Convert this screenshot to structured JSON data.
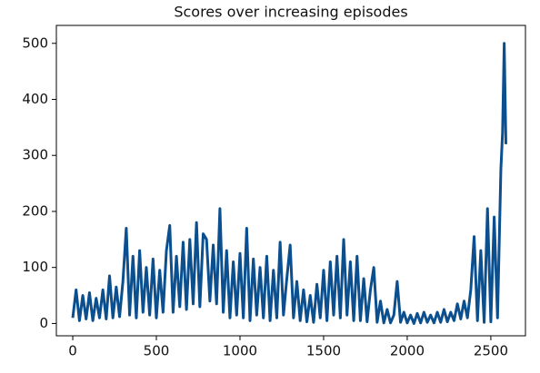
{
  "chart_data": {
    "type": "line",
    "title": "Scores over increasing episodes",
    "x": [
      0,
      20,
      40,
      60,
      80,
      100,
      120,
      140,
      160,
      180,
      200,
      220,
      240,
      260,
      280,
      300,
      320,
      340,
      360,
      380,
      400,
      420,
      440,
      460,
      480,
      500,
      520,
      540,
      560,
      580,
      600,
      620,
      640,
      660,
      680,
      700,
      720,
      740,
      760,
      780,
      800,
      820,
      840,
      860,
      880,
      900,
      920,
      940,
      960,
      980,
      1000,
      1020,
      1040,
      1060,
      1080,
      1100,
      1120,
      1140,
      1160,
      1180,
      1200,
      1220,
      1240,
      1260,
      1280,
      1300,
      1320,
      1340,
      1360,
      1380,
      1400,
      1420,
      1440,
      1460,
      1480,
      1500,
      1520,
      1540,
      1560,
      1580,
      1600,
      1620,
      1640,
      1660,
      1680,
      1700,
      1720,
      1740,
      1760,
      1780,
      1800,
      1820,
      1840,
      1860,
      1880,
      1900,
      1920,
      1940,
      1960,
      1980,
      2000,
      2020,
      2040,
      2060,
      2080,
      2100,
      2120,
      2140,
      2160,
      2180,
      2200,
      2220,
      2240,
      2260,
      2280,
      2300,
      2320,
      2340,
      2360,
      2380,
      2400,
      2420,
      2440,
      2460,
      2480,
      2500,
      2520,
      2540,
      2560,
      2570,
      2580,
      2590
    ],
    "series": [
      {
        "name": "Scores",
        "color": "#0b4f8f",
        "values": [
          10,
          60,
          5,
          50,
          8,
          55,
          5,
          45,
          10,
          60,
          8,
          85,
          10,
          65,
          12,
          75,
          170,
          15,
          120,
          10,
          130,
          20,
          100,
          15,
          115,
          10,
          95,
          20,
          130,
          175,
          20,
          120,
          30,
          145,
          25,
          150,
          35,
          180,
          30,
          160,
          150,
          40,
          140,
          35,
          205,
          20,
          130,
          10,
          110,
          15,
          125,
          10,
          170,
          5,
          115,
          15,
          100,
          10,
          120,
          5,
          95,
          10,
          145,
          15,
          80,
          140,
          10,
          75,
          5,
          60,
          3,
          50,
          2,
          70,
          10,
          95,
          5,
          110,
          15,
          120,
          10,
          150,
          15,
          110,
          5,
          120,
          5,
          80,
          3,
          60,
          100,
          2,
          40,
          1,
          25,
          1,
          15,
          75,
          2,
          20,
          1,
          15,
          0,
          18,
          1,
          20,
          2,
          15,
          1,
          20,
          2,
          25,
          3,
          20,
          5,
          35,
          8,
          40,
          10,
          60,
          155,
          5,
          130,
          2,
          205,
          3,
          190,
          10,
          275,
          340,
          500,
          320
        ]
      }
    ],
    "xlim": [
      -98,
      2707
    ],
    "ylim": [
      -22,
      532
    ],
    "xticks": [
      0,
      500,
      1000,
      1500,
      2000,
      2500
    ],
    "yticks": [
      0,
      100,
      200,
      300,
      400,
      500
    ]
  }
}
